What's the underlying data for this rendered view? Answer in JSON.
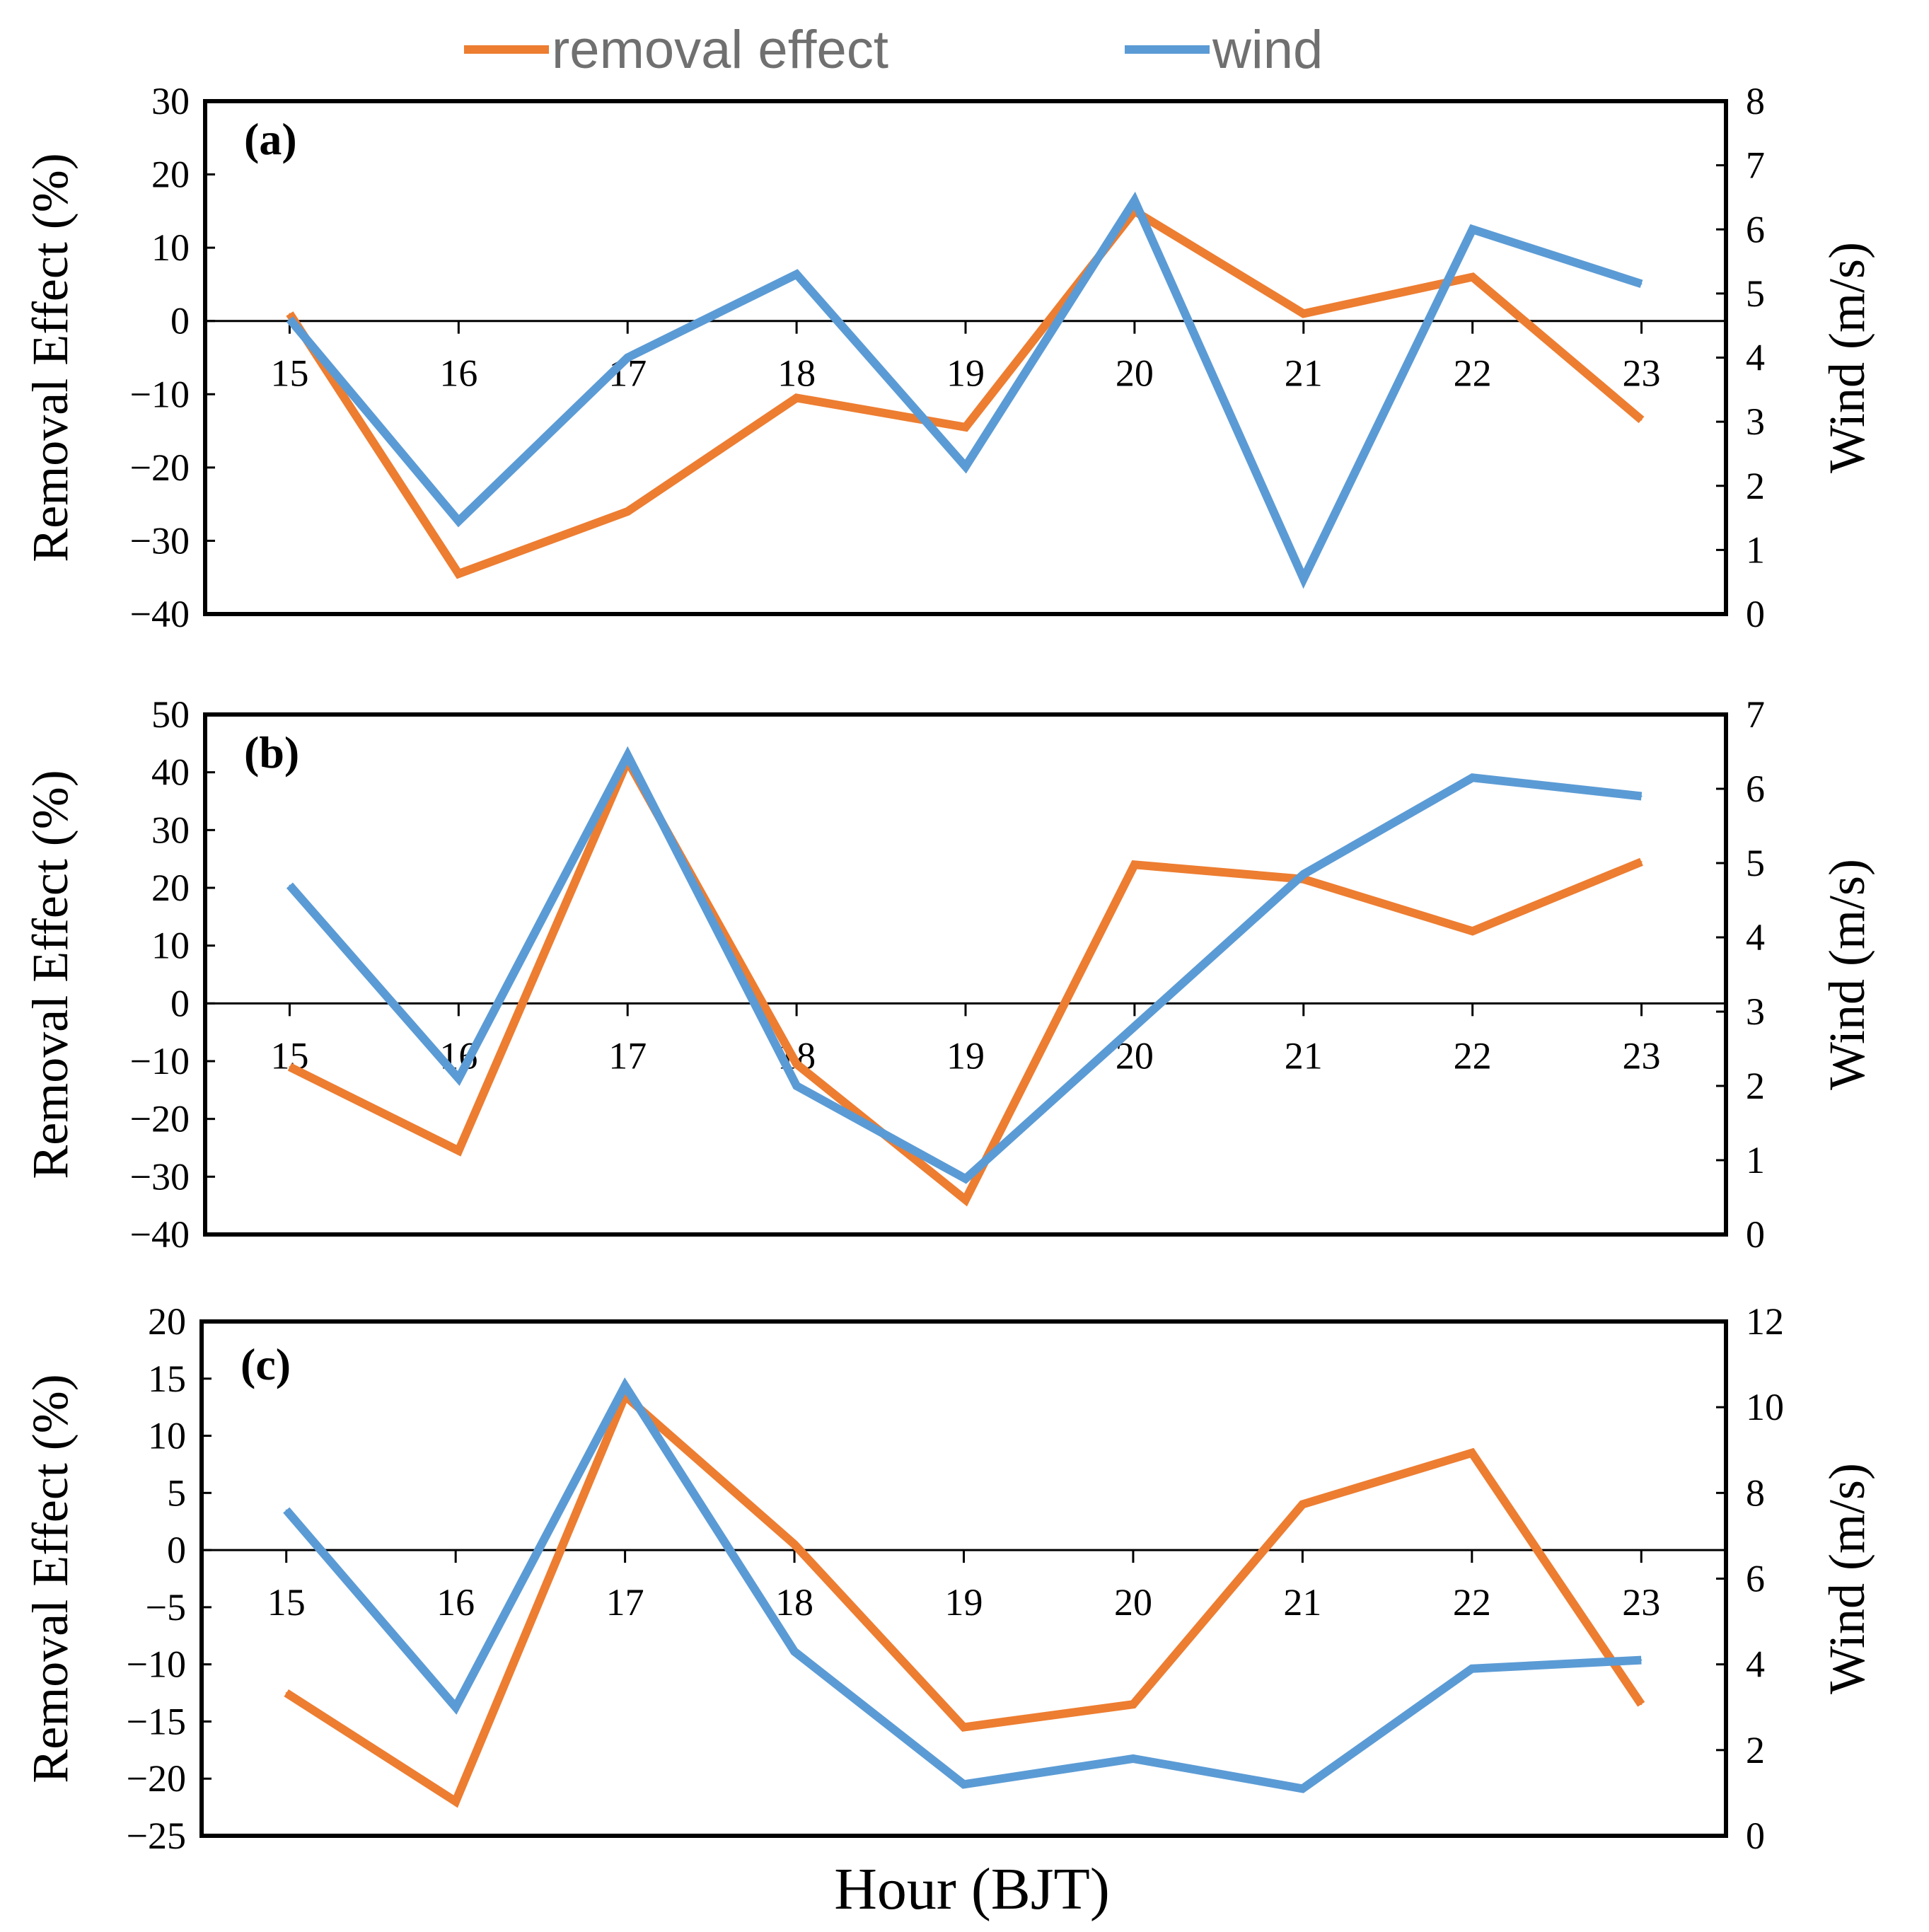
{
  "colors": {
    "removal": "#ED7D31",
    "wind": "#5B9BD5",
    "axis": "#000000"
  },
  "legend": {
    "items": [
      {
        "label": "removal effect",
        "color": "#ED7D31"
      },
      {
        "label": "wind",
        "color": "#5B9BD5"
      }
    ]
  },
  "chart_data": [
    {
      "type": "line",
      "panel_label": "(a)",
      "title": "",
      "categories": [
        15,
        16,
        17,
        18,
        19,
        20,
        21,
        22,
        23
      ],
      "ylabel": "Removal Effect (%)",
      "y2label": "Wind (m/s)",
      "ylim": [
        -40,
        30
      ],
      "yticks": [
        30,
        20,
        10,
        0,
        -10,
        -20,
        -30,
        -40
      ],
      "y2lim": [
        0,
        8
      ],
      "y2ticks": [
        8,
        7,
        6,
        5,
        4,
        3,
        2,
        1,
        0
      ],
      "series": [
        {
          "name": "removal effect",
          "axis": "left",
          "values": [
            1,
            -34.5,
            -26,
            -10.5,
            -14.5,
            15,
            1,
            6,
            -13.5
          ]
        },
        {
          "name": "wind",
          "axis": "right",
          "values": [
            4.6,
            1.45,
            4.0,
            5.3,
            2.3,
            6.45,
            0.55,
            6.0,
            5.15
          ]
        }
      ]
    },
    {
      "type": "line",
      "panel_label": "(b)",
      "title": "",
      "categories": [
        15,
        16,
        17,
        18,
        19,
        20,
        21,
        22,
        23
      ],
      "ylabel": "Removal Effect (%)",
      "y2label": "Wind (m/s)",
      "ylim": [
        -40,
        50
      ],
      "yticks": [
        50,
        40,
        30,
        20,
        10,
        0,
        -10,
        -20,
        -30,
        -40
      ],
      "y2lim": [
        0,
        7
      ],
      "y2ticks": [
        7,
        6,
        5,
        4,
        3,
        2,
        1,
        0
      ],
      "series": [
        {
          "name": "removal effect",
          "axis": "left",
          "values": [
            -11,
            -25.5,
            42,
            -10.5,
            -34,
            24,
            21.5,
            12.5,
            24.5
          ]
        },
        {
          "name": "wind",
          "axis": "right",
          "values": [
            4.7,
            2.1,
            6.45,
            2.0,
            0.75,
            2.8,
            4.85,
            6.15,
            5.9
          ]
        }
      ]
    },
    {
      "type": "line",
      "panel_label": "(c)",
      "title": "",
      "categories": [
        15,
        16,
        17,
        18,
        19,
        20,
        21,
        22,
        23
      ],
      "ylabel": "Removal Effect (%)",
      "y2label": "Wind  (m/s)",
      "ylim": [
        -25,
        20
      ],
      "yticks": [
        20,
        15,
        10,
        5,
        0,
        -5,
        -10,
        -15,
        -20,
        -25
      ],
      "y2lim": [
        0,
        12
      ],
      "y2ticks": [
        12,
        10,
        8,
        6,
        4,
        2,
        0
      ],
      "series": [
        {
          "name": "removal effect",
          "axis": "left",
          "values": [
            -12.5,
            -22,
            13.5,
            0.5,
            -15.5,
            -13.5,
            4,
            8.5,
            -13.5
          ]
        },
        {
          "name": "wind",
          "axis": "right",
          "values": [
            7.6,
            3.0,
            10.5,
            4.3,
            1.2,
            1.8,
            1.1,
            3.9,
            4.1
          ]
        }
      ]
    }
  ],
  "xlabel": "Hour  (BJT)"
}
